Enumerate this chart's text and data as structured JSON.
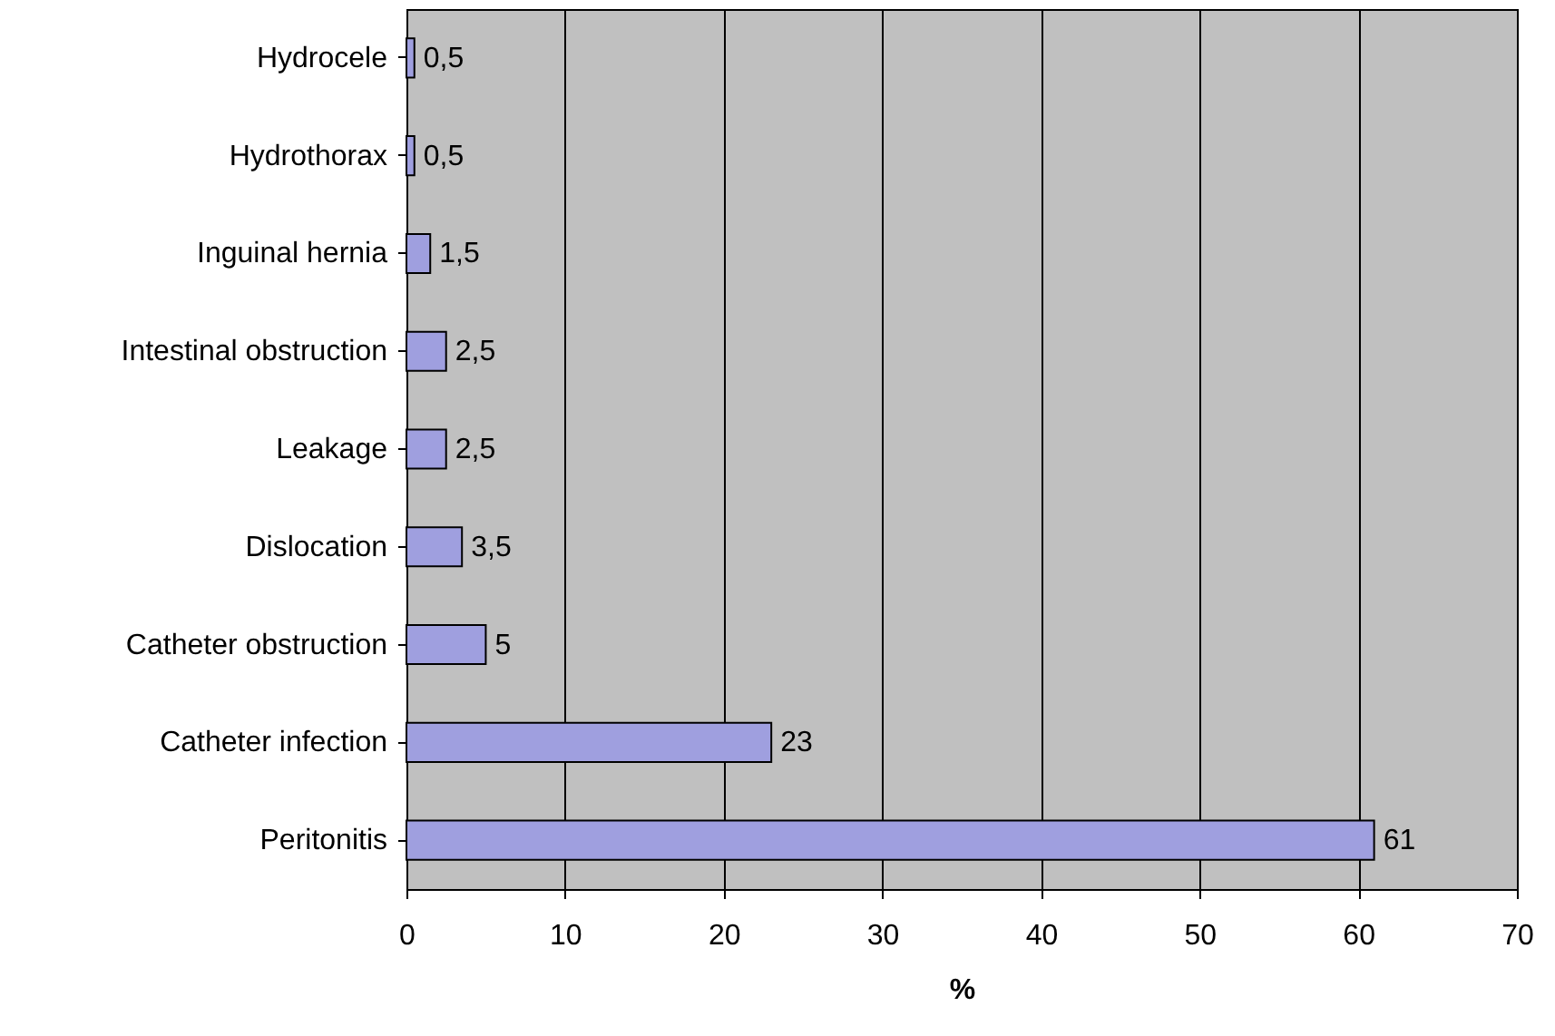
{
  "chart_data": {
    "type": "bar",
    "orientation": "horizontal",
    "xlabel": "%",
    "categories": [
      "Hydrocele",
      "Hydrothorax",
      "Inguinal hernia",
      "Intestinal obstruction",
      "Leakage",
      "Dislocation",
      "Catheter obstruction",
      "Catheter infection",
      "Peritonitis"
    ],
    "values": [
      0.5,
      0.5,
      1.5,
      2.5,
      2.5,
      3.5,
      5,
      23,
      61
    ],
    "value_labels": [
      "0,5",
      "0,5",
      "1,5",
      "2,5",
      "2,5",
      "3,5",
      "5",
      "23",
      "61"
    ],
    "color": "#9f9fdf",
    "xlim": [
      0,
      70
    ],
    "xticks": [
      0,
      10,
      20,
      30,
      40,
      50,
      60,
      70
    ],
    "grid": "x"
  }
}
